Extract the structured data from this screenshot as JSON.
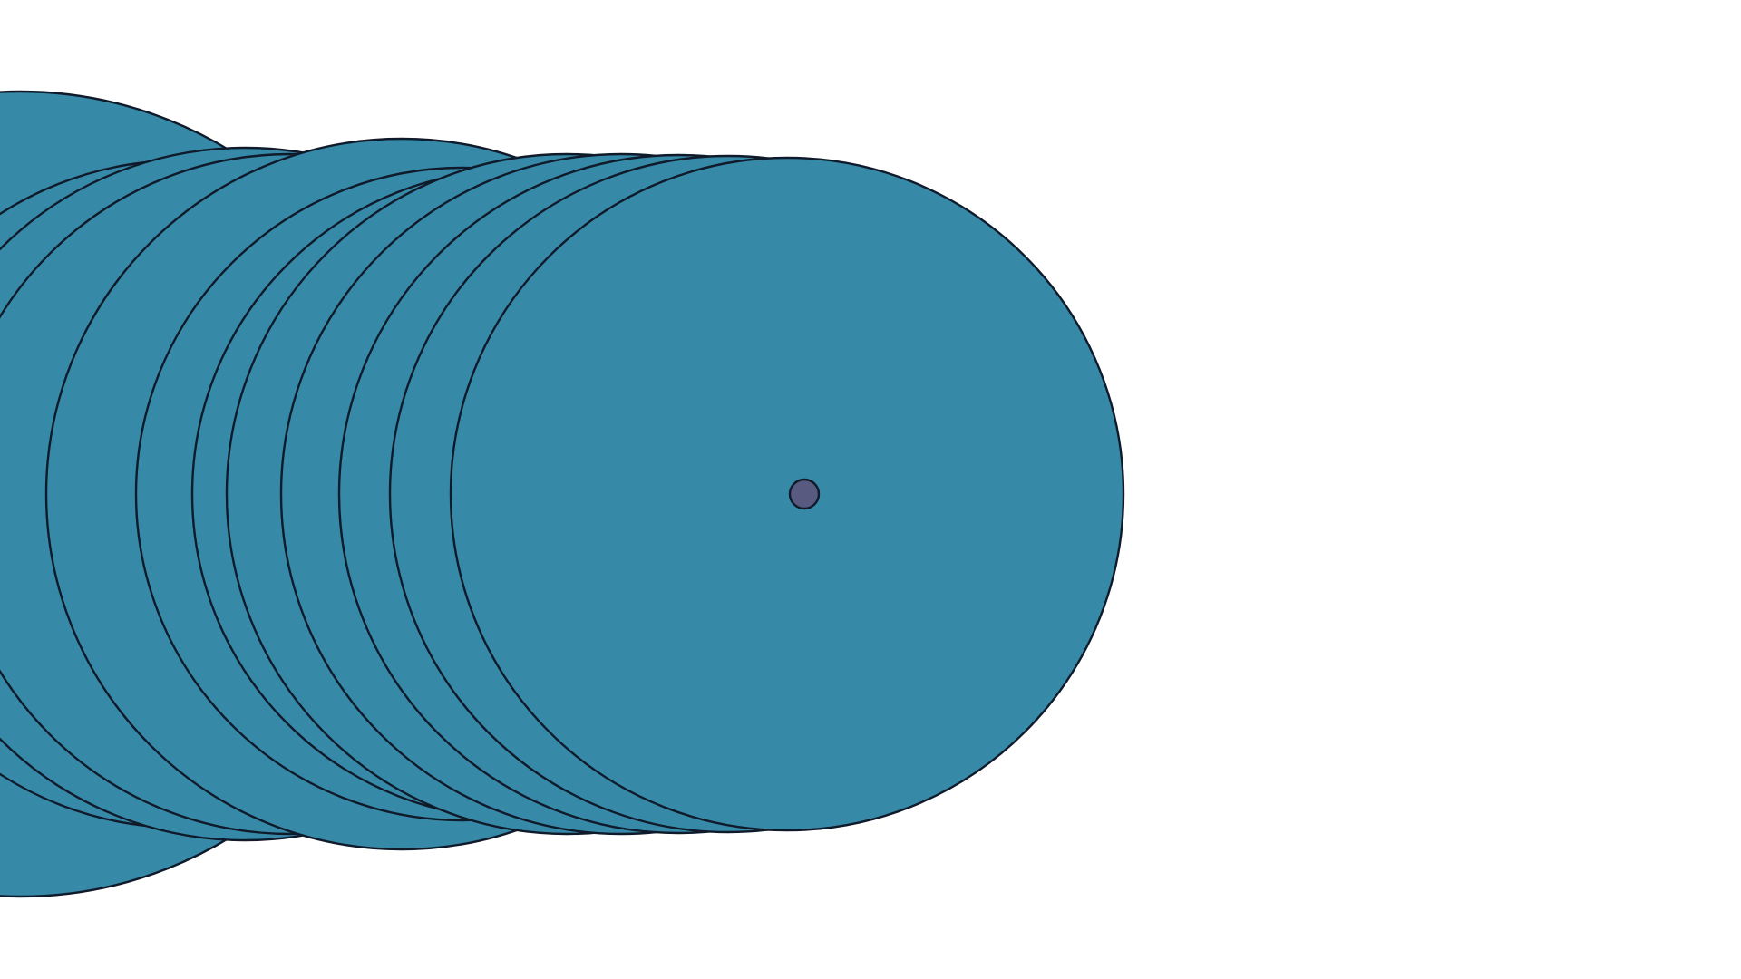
{
  "scene": {
    "background": "#ffffff",
    "disc_color": "#3789a8",
    "outline_color": "#0f1a2a",
    "marker_color": "#585a80",
    "disc_count": 12,
    "marker_count": 1
  }
}
